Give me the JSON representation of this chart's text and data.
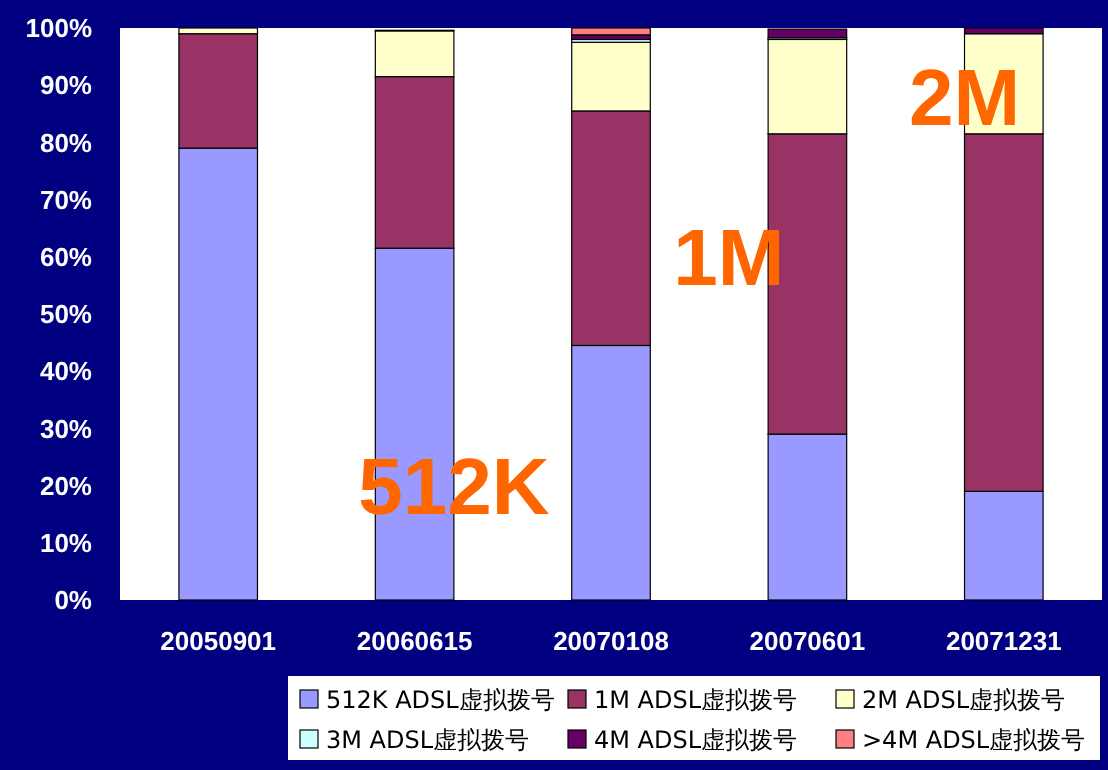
{
  "chart_data": {
    "type": "bar",
    "stacked": true,
    "categories": [
      "20050901",
      "20060615",
      "20070108",
      "20070601",
      "20071231"
    ],
    "series": [
      {
        "name": "512K ADSL虚拟拨号",
        "color": "#9999ff",
        "values": [
          79,
          61.5,
          44.5,
          29,
          19
        ]
      },
      {
        "name": "1M ADSL虚拟拨号",
        "color": "#993366",
        "values": [
          20,
          30,
          41,
          52.5,
          62.5
        ]
      },
      {
        "name": "2M ADSL虚拟拨号",
        "color": "#ffffcc",
        "values": [
          1,
          8,
          12,
          16.5,
          17.5
        ]
      },
      {
        "name": "3M ADSL虚拟拨号",
        "color": "#ccffff",
        "values": [
          0,
          null,
          0.5,
          0.3,
          0
        ]
      },
      {
        "name": "4M ADSL虚拟拨号",
        "color": "#660066",
        "values": [
          0,
          0.1,
          0.8,
          1.5,
          1
        ]
      },
      {
        "name": ">4M ADSL虚拟拨号",
        "color": "#ff8080",
        "values": [
          0,
          null,
          1.2,
          null,
          0
        ]
      }
    ],
    "ylim": [
      0,
      100
    ],
    "yticks": [
      {
        "value": 0,
        "label": "0%"
      },
      {
        "value": 10,
        "label": "10%"
      },
      {
        "value": 20,
        "label": "20%"
      },
      {
        "value": 30,
        "label": "30%"
      },
      {
        "value": 40,
        "label": "40%"
      },
      {
        "value": 50,
        "label": "50%"
      },
      {
        "value": 60,
        "label": "60%"
      },
      {
        "value": 70,
        "label": "70%"
      },
      {
        "value": 80,
        "label": "80%"
      },
      {
        "value": 90,
        "label": "90%"
      },
      {
        "value": 100,
        "label": "100%"
      }
    ],
    "annotations": [
      "512K",
      "1M",
      "2M"
    ],
    "legend": "bottom",
    "grid": false
  }
}
